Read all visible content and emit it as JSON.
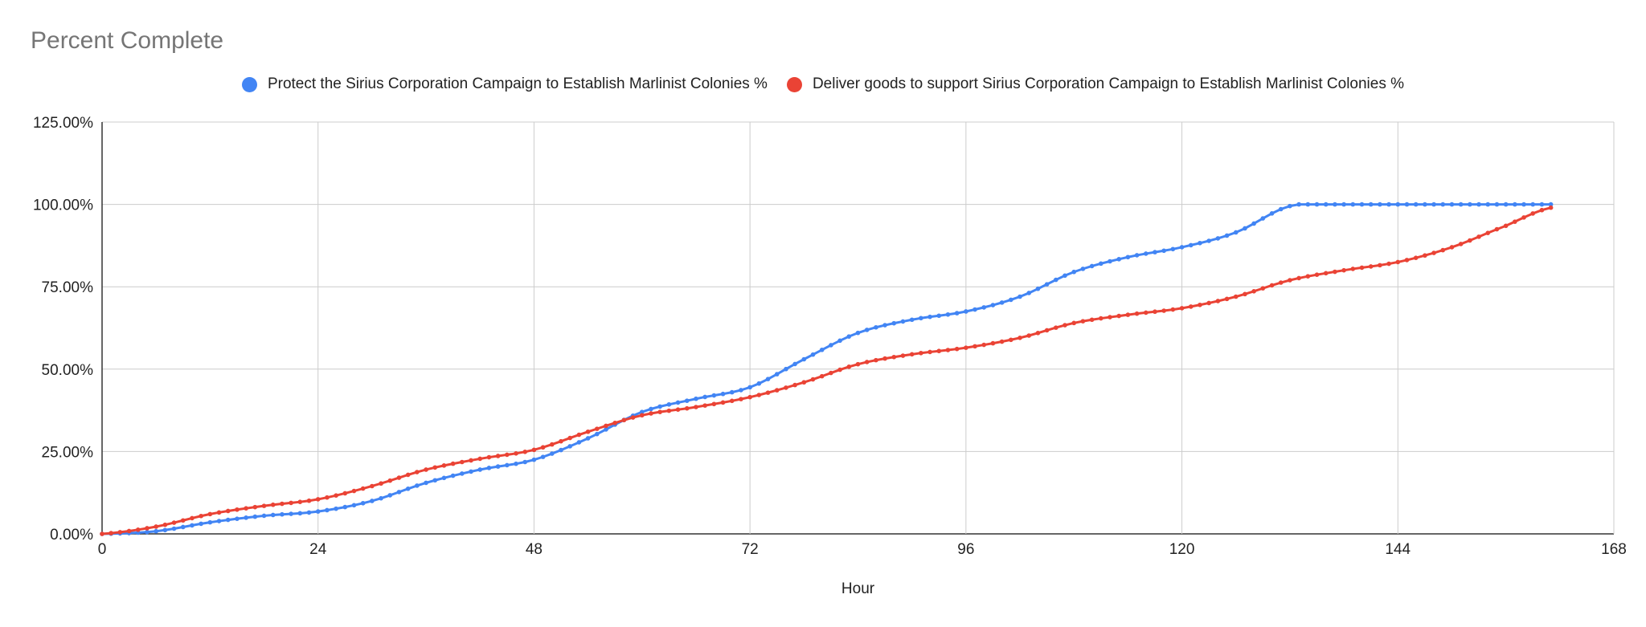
{
  "chart_data": {
    "type": "line",
    "title": "Percent Complete",
    "xlabel": "Hour",
    "ylabel": "",
    "xlim": [
      0,
      168
    ],
    "ylim": [
      0,
      1.25
    ],
    "x_ticks": [
      0,
      24,
      48,
      72,
      96,
      120,
      144,
      168
    ],
    "y_ticks": [
      0,
      0.25,
      0.5,
      0.75,
      1.0,
      1.25
    ],
    "x_tick_labels": [
      "0",
      "24",
      "48",
      "72",
      "96",
      "120",
      "144",
      "168"
    ],
    "y_tick_labels": [
      "0.00%",
      "25.00%",
      "50.00%",
      "75.00%",
      "100.00%",
      "125.00%"
    ],
    "grid": true,
    "legend_position": "top",
    "markers": true,
    "series": [
      {
        "name": "Protect the Sirius Corporation Campaign to Establish Marlinist Colonies %",
        "color": "#4285f4",
        "points": [
          [
            0,
            0
          ],
          [
            6,
            0.008
          ],
          [
            12,
            0.035
          ],
          [
            18,
            0.055
          ],
          [
            24,
            0.068
          ],
          [
            30,
            0.1
          ],
          [
            36,
            0.155
          ],
          [
            42,
            0.195
          ],
          [
            48,
            0.225
          ],
          [
            54,
            0.29
          ],
          [
            60,
            0.37
          ],
          [
            66,
            0.41
          ],
          [
            72,
            0.445
          ],
          [
            78,
            0.53
          ],
          [
            84,
            0.61
          ],
          [
            90,
            0.65
          ],
          [
            96,
            0.675
          ],
          [
            102,
            0.72
          ],
          [
            108,
            0.795
          ],
          [
            114,
            0.84
          ],
          [
            120,
            0.87
          ],
          [
            126,
            0.915
          ],
          [
            132,
            0.995
          ],
          [
            138,
            1.0
          ],
          [
            144,
            1.0
          ],
          [
            150,
            1.0
          ],
          [
            156,
            1.0
          ],
          [
            161,
            1.0
          ]
        ]
      },
      {
        "name": "Deliver goods to support Sirius Corporation Campaign to Establish Marlinist Colonies %",
        "color": "#ea4335",
        "points": [
          [
            0,
            0
          ],
          [
            6,
            0.022
          ],
          [
            12,
            0.06
          ],
          [
            18,
            0.085
          ],
          [
            24,
            0.105
          ],
          [
            30,
            0.145
          ],
          [
            36,
            0.195
          ],
          [
            42,
            0.228
          ],
          [
            48,
            0.255
          ],
          [
            54,
            0.31
          ],
          [
            60,
            0.36
          ],
          [
            66,
            0.385
          ],
          [
            72,
            0.415
          ],
          [
            78,
            0.46
          ],
          [
            84,
            0.515
          ],
          [
            90,
            0.545
          ],
          [
            96,
            0.565
          ],
          [
            102,
            0.595
          ],
          [
            108,
            0.64
          ],
          [
            114,
            0.665
          ],
          [
            120,
            0.685
          ],
          [
            126,
            0.72
          ],
          [
            132,
            0.77
          ],
          [
            138,
            0.8
          ],
          [
            144,
            0.825
          ],
          [
            150,
            0.87
          ],
          [
            156,
            0.935
          ],
          [
            161,
            0.99
          ]
        ]
      }
    ]
  }
}
